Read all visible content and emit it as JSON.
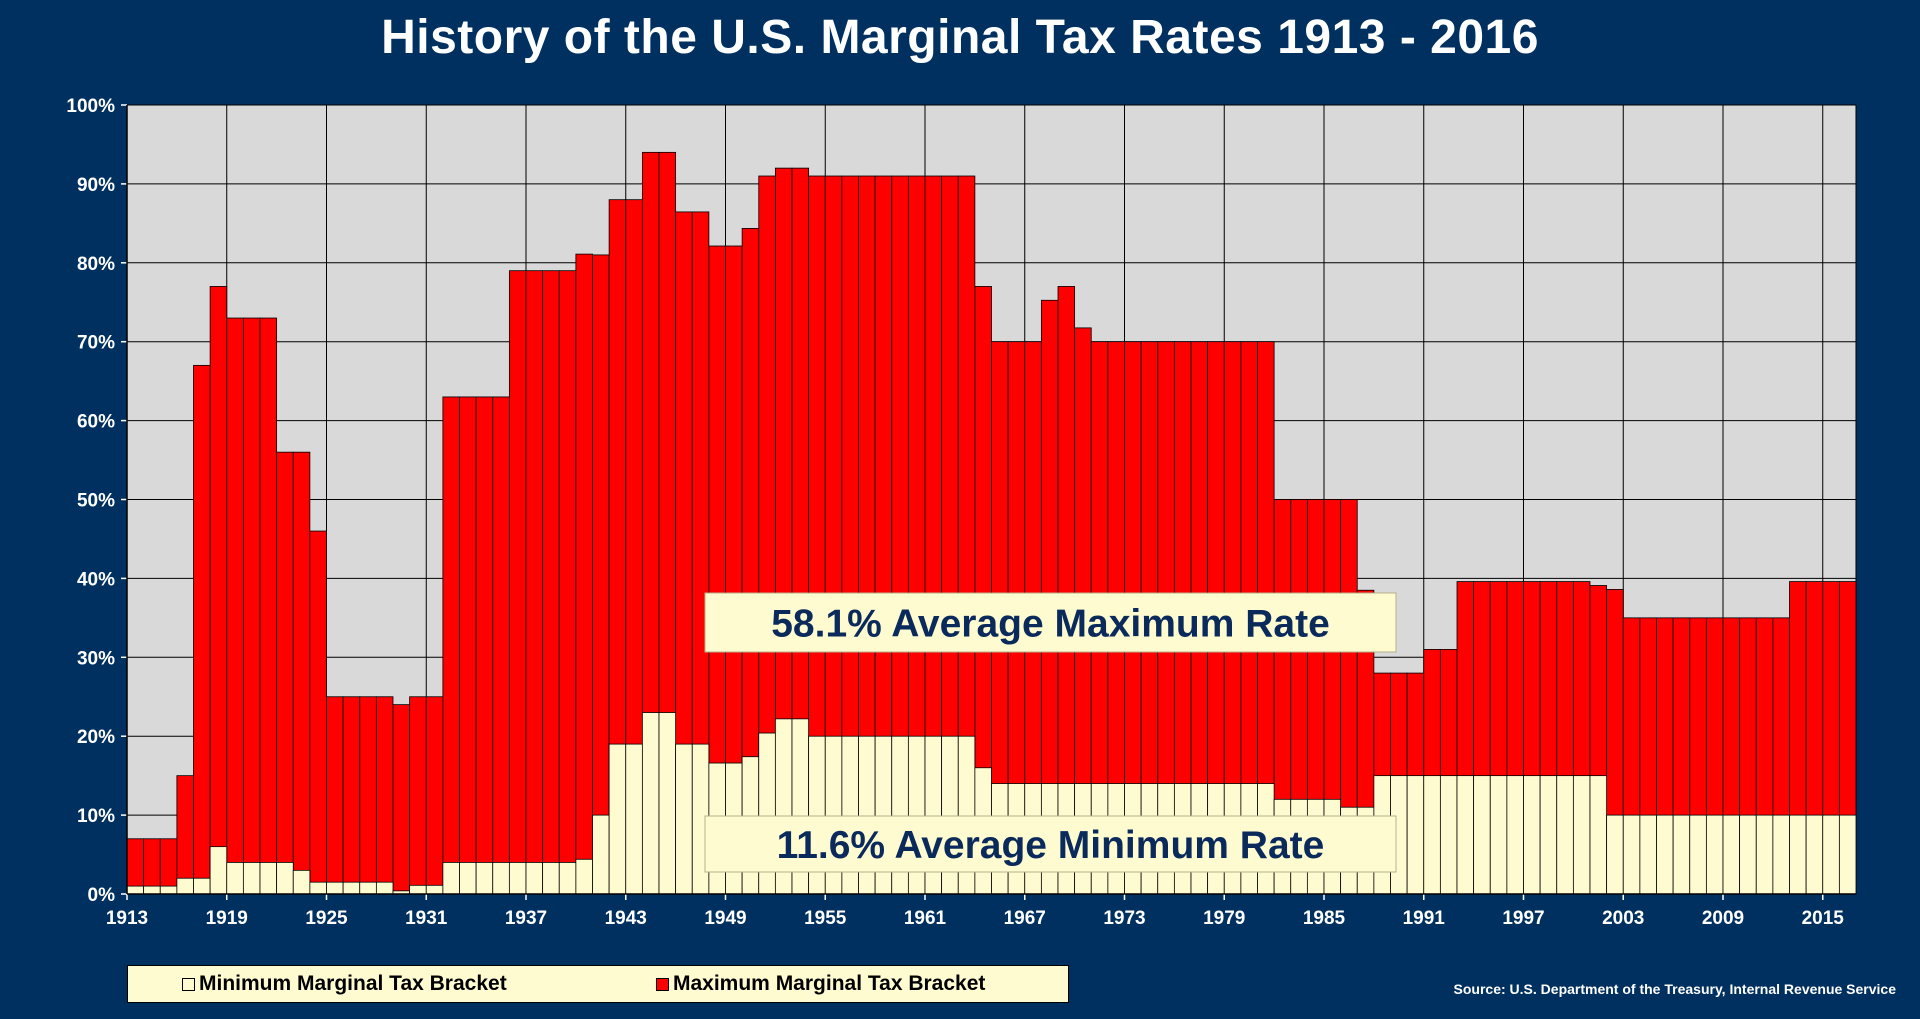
{
  "chart_data": {
    "type": "bar",
    "title": "History of the U.S. Marginal Tax Rates 1913 - 2016",
    "stacked_overlap": true,
    "x": [
      1913,
      1914,
      1915,
      1916,
      1917,
      1918,
      1919,
      1920,
      1921,
      1922,
      1923,
      1924,
      1925,
      1926,
      1927,
      1928,
      1929,
      1930,
      1931,
      1932,
      1933,
      1934,
      1935,
      1936,
      1937,
      1938,
      1939,
      1940,
      1941,
      1942,
      1943,
      1944,
      1945,
      1946,
      1947,
      1948,
      1949,
      1950,
      1951,
      1952,
      1953,
      1954,
      1955,
      1956,
      1957,
      1958,
      1959,
      1960,
      1961,
      1962,
      1963,
      1964,
      1965,
      1966,
      1967,
      1968,
      1969,
      1970,
      1971,
      1972,
      1973,
      1974,
      1975,
      1976,
      1977,
      1978,
      1979,
      1980,
      1981,
      1982,
      1983,
      1984,
      1985,
      1986,
      1987,
      1988,
      1989,
      1990,
      1991,
      1992,
      1993,
      1994,
      1995,
      1996,
      1997,
      1998,
      1999,
      2000,
      2001,
      2002,
      2003,
      2004,
      2005,
      2006,
      2007,
      2008,
      2009,
      2010,
      2011,
      2012,
      2013,
      2014,
      2015,
      2016
    ],
    "series": [
      {
        "name": "Minimum Marginal Tax Bracket",
        "color": "#fffbd0",
        "values": [
          1,
          1,
          1,
          2,
          2,
          6,
          4,
          4,
          4,
          4,
          3,
          1.5,
          1.5,
          1.5,
          1.5,
          1.5,
          0.4,
          1.1,
          1.1,
          4,
          4,
          4,
          4,
          4,
          4,
          4,
          4,
          4.4,
          10,
          19,
          19,
          23,
          23,
          19,
          19,
          16.6,
          16.6,
          17.4,
          20.4,
          22.2,
          22.2,
          20,
          20,
          20,
          20,
          20,
          20,
          20,
          20,
          20,
          20,
          16,
          14,
          14,
          14,
          14,
          14,
          14,
          14,
          14,
          14,
          14,
          14,
          14,
          14,
          14,
          14,
          14,
          14,
          12,
          12,
          12,
          12,
          11,
          11,
          15,
          15,
          15,
          15,
          15,
          15,
          15,
          15,
          15,
          15,
          15,
          15,
          15,
          15,
          10,
          10,
          10,
          10,
          10,
          10,
          10,
          10,
          10,
          10,
          10,
          10,
          10,
          10,
          10
        ]
      },
      {
        "name": "Maximum Marginal Tax Bracket",
        "color": "#ff0000",
        "values": [
          7,
          7,
          7,
          15,
          67,
          77,
          73,
          73,
          73,
          56,
          56,
          46,
          25,
          25,
          25,
          25,
          24,
          25,
          25,
          63,
          63,
          63,
          63,
          79,
          79,
          79,
          79,
          81.1,
          81,
          88,
          88,
          94,
          94,
          86.45,
          86.45,
          82.13,
          82.13,
          84.36,
          91,
          92,
          92,
          91,
          91,
          91,
          91,
          91,
          91,
          91,
          91,
          91,
          91,
          77,
          70,
          70,
          70,
          75.25,
          77,
          71.75,
          70,
          70,
          70,
          70,
          70,
          70,
          70,
          70,
          70,
          70,
          70,
          50,
          50,
          50,
          50,
          50,
          38.5,
          28,
          28,
          28,
          31,
          31,
          39.6,
          39.6,
          39.6,
          39.6,
          39.6,
          39.6,
          39.6,
          39.6,
          39.1,
          38.6,
          35,
          35,
          35,
          35,
          35,
          35,
          35,
          35,
          35,
          35,
          39.6,
          39.6,
          39.6,
          39.6
        ]
      }
    ],
    "ylim": [
      0,
      100
    ],
    "y_ticks": [
      "0%",
      "10%",
      "20%",
      "30%",
      "40%",
      "50%",
      "60%",
      "70%",
      "80%",
      "90%",
      "100%"
    ],
    "x_tick_labels": [
      "1913",
      "1919",
      "1925",
      "1931",
      "1937",
      "1943",
      "1949",
      "1955",
      "1961",
      "1967",
      "1973",
      "1979",
      "1985",
      "1991",
      "1997",
      "2003",
      "2009",
      "2015"
    ],
    "grid": true,
    "legend_position": "bottom-left",
    "annotations": [
      {
        "text": "58.1% Average Maximum Rate"
      },
      {
        "text": "11.6% Average Minimum Rate"
      }
    ],
    "source": "Source: U.S. Department of the Treasury, Internal Revenue Service"
  },
  "colors": {
    "background": "#00305f",
    "plot_area": "#d9d9d9",
    "annotation_fill": "#fffbd0",
    "annotation_text": "#0a2a5c"
  }
}
